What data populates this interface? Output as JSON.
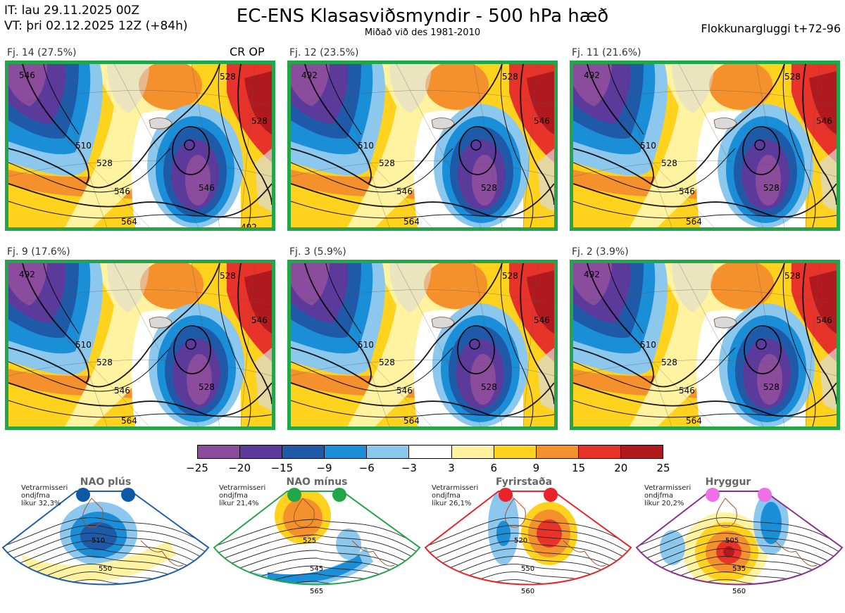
{
  "header": {
    "init_time": "IT: lau 29.11.2025 00Z",
    "valid_time": "VT: þri 02.12.2025 12Z  (+84h)",
    "title": "EC-ENS Klasasviðsmyndir - 500 hPa hæð",
    "subtitle": "Miðað við des 1981-2010",
    "window": "Flokkunargluggi t+72-96",
    "cr_op": "CR OP"
  },
  "panels": [
    {
      "label": "Fj. 14 (27.5%)",
      "contours": [
        "528",
        "510",
        "528",
        "546",
        "564",
        "546",
        "528",
        "546",
        "492"
      ]
    },
    {
      "label": "Fj. 12 (23.5%)",
      "contours": [
        "528",
        "510",
        "528",
        "546",
        "564",
        "528",
        "546",
        "492"
      ]
    },
    {
      "label": "Fj. 11 (21.6%)",
      "contours": [
        "528",
        "510",
        "528",
        "546",
        "564",
        "528",
        "546",
        "492"
      ]
    },
    {
      "label": "Fj. 9 (17.6%)",
      "contours": [
        "528",
        "510",
        "528",
        "546",
        "564",
        "528",
        "546",
        "492"
      ]
    },
    {
      "label": "Fj. 3 (5.9%)",
      "contours": [
        "528",
        "510",
        "528",
        "546",
        "564",
        "528",
        "546"
      ]
    },
    {
      "label": "Fj. 2 (3.9%)",
      "contours": [
        "528",
        "510",
        "528",
        "546",
        "564",
        "528",
        "546",
        "492"
      ]
    }
  ],
  "colorbar": {
    "colors": [
      "#8c4c9e",
      "#5b3a9c",
      "#1e5aa8",
      "#1a8ed6",
      "#8cc8ee",
      "#ffffff",
      "#fff2a0",
      "#ffd21e",
      "#f5912d",
      "#e8332a",
      "#b01a1e"
    ],
    "ticks": [
      "−25",
      "−20",
      "−15",
      "−9",
      "−6",
      "−3",
      "3",
      "6",
      "9",
      "15",
      "20",
      "25"
    ]
  },
  "regimes": [
    {
      "title": "NAO plús",
      "note": [
        "Vetrarmisseri",
        "ondjfma",
        "líkur 32,3%"
      ],
      "dot_color": "#0c5aa6",
      "frame_color": "#1f5ea8",
      "contours": [
        "510",
        "550"
      ]
    },
    {
      "title": "NAO mínus",
      "note": [
        "Vetrarmisseri",
        "ondjfma",
        "líkur 21,4%"
      ],
      "dot_color": "#23a64a",
      "frame_color": "#23a64a",
      "contours": [
        "525",
        "545",
        "565"
      ]
    },
    {
      "title": "Fyrirstaða",
      "note": [
        "Vetrarmisseri",
        "ondjfma",
        "líkur 26,1%"
      ],
      "dot_color": "#e8242a",
      "frame_color": "#e8242a",
      "contours": [
        "520",
        "550",
        "560"
      ]
    },
    {
      "title": "Hryggur",
      "note": [
        "Vetrarmisseri",
        "ondjfma",
        "líkur 20,2%"
      ],
      "dot_color": "#ee6fe6",
      "frame_color": "#8b2f8f",
      "contours": [
        "505",
        "535",
        "560"
      ]
    }
  ]
}
